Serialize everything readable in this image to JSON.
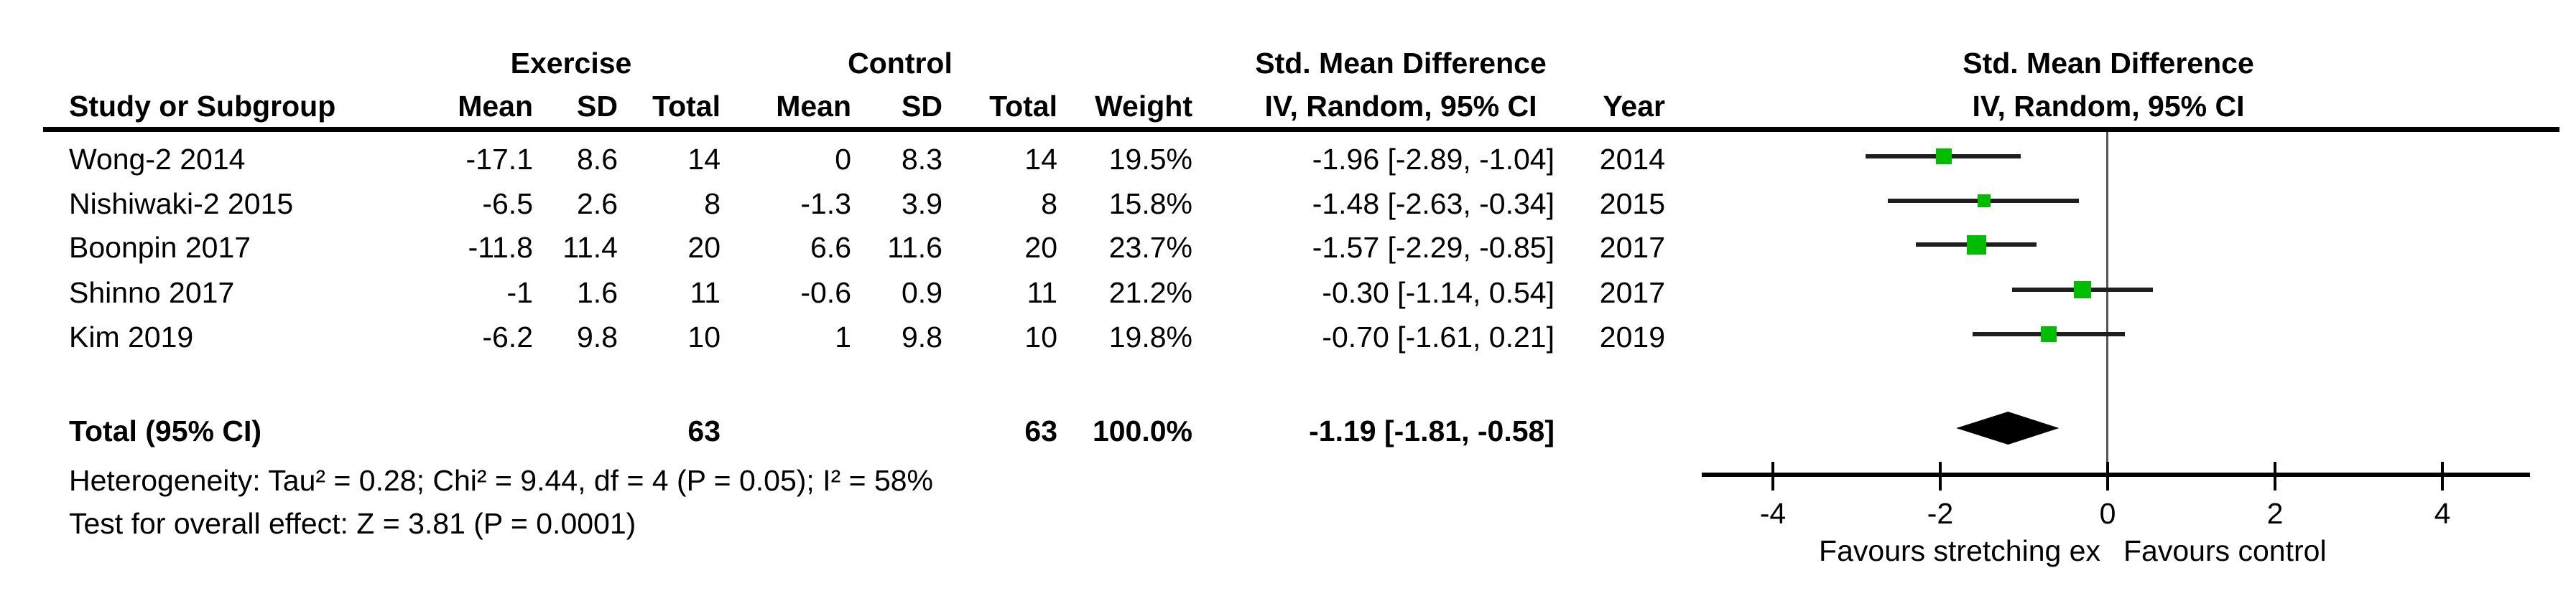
{
  "colors": {
    "marker_green": "#00BD00",
    "ci_line": "#1f1f1f",
    "zero_line": "#555555",
    "axis": "#000000",
    "text": "#000000"
  },
  "header": {
    "group_exercise": "Exercise",
    "group_control": "Control",
    "smd_left": "Std. Mean Difference",
    "smd_right": "Std. Mean Difference",
    "col_study": "Study or Subgroup",
    "col_mean_e": "Mean",
    "col_sd_e": "SD",
    "col_total_e": "Total",
    "col_mean_c": "Mean",
    "col_sd_c": "SD",
    "col_total_c": "Total",
    "col_weight": "Weight",
    "col_iv_left": "IV, Random, 95% CI",
    "col_year": "Year",
    "col_iv_right": "IV, Random, 95% CI"
  },
  "studies": [
    {
      "name": "Wong-2 2014",
      "mean_e": "-17.1",
      "sd_e": "8.6",
      "total_e": "14",
      "mean_c": "0",
      "sd_c": "8.3",
      "total_c": "14",
      "weight": "19.5%",
      "ci_text": "-1.96 [-2.89, -1.04]",
      "year": "2014"
    },
    {
      "name": "Nishiwaki-2 2015",
      "mean_e": "-6.5",
      "sd_e": "2.6",
      "total_e": "8",
      "mean_c": "-1.3",
      "sd_c": "3.9",
      "total_c": "8",
      "weight": "15.8%",
      "ci_text": "-1.48 [-2.63, -0.34]",
      "year": "2015"
    },
    {
      "name": "Boonpin 2017",
      "mean_e": "-11.8",
      "sd_e": "11.4",
      "total_e": "20",
      "mean_c": "6.6",
      "sd_c": "11.6",
      "total_c": "20",
      "weight": "23.7%",
      "ci_text": "-1.57 [-2.29, -0.85]",
      "year": "2017"
    },
    {
      "name": "Shinno 2017",
      "mean_e": "-1",
      "sd_e": "1.6",
      "total_e": "11",
      "mean_c": "-0.6",
      "sd_c": "0.9",
      "total_c": "11",
      "weight": "21.2%",
      "ci_text": "-0.30 [-1.14, 0.54]",
      "year": "2017"
    },
    {
      "name": "Kim 2019",
      "mean_e": "-6.2",
      "sd_e": "9.8",
      "total_e": "10",
      "mean_c": "1",
      "sd_c": "9.8",
      "total_c": "10",
      "weight": "19.8%",
      "ci_text": "-0.70 [-1.61, 0.21]",
      "year": "2019"
    }
  ],
  "total": {
    "label": "Total (95% CI)",
    "total_e": "63",
    "total_c": "63",
    "weight": "100.0%",
    "ci_text": "-1.19 [-1.81, -0.58]"
  },
  "footnotes": {
    "heterogeneity": "Heterogeneity: Tau² = 0.28; Chi² = 9.44, df = 4 (P = 0.05); I² = 58%",
    "overall_effect": "Test for overall effect: Z = 3.81 (P = 0.0001)"
  },
  "chart_data": {
    "type": "scatter",
    "subtype": "forest-plot",
    "title": "Std. Mean Difference",
    "effect_model": "IV, Random, 95% CI",
    "x_ticks": [
      -4,
      -2,
      0,
      2,
      4
    ],
    "xlim": [
      -4.85,
      5.05
    ],
    "zero_line": 0,
    "xlabel_left": "Favours stretching ex",
    "xlabel_right": "Favours control",
    "points": [
      {
        "study": "Wong-2 2014",
        "smd": -1.96,
        "ci_low": -2.89,
        "ci_high": -1.04,
        "weight_pct": 19.5,
        "year": 2014
      },
      {
        "study": "Nishiwaki-2 2015",
        "smd": -1.48,
        "ci_low": -2.63,
        "ci_high": -0.34,
        "weight_pct": 15.8,
        "year": 2015
      },
      {
        "study": "Boonpin 2017",
        "smd": -1.57,
        "ci_low": -2.29,
        "ci_high": -0.85,
        "weight_pct": 23.7,
        "year": 2017
      },
      {
        "study": "Shinno 2017",
        "smd": -0.3,
        "ci_low": -1.14,
        "ci_high": 0.54,
        "weight_pct": 21.2,
        "year": 2017
      },
      {
        "study": "Kim 2019",
        "smd": -0.7,
        "ci_low": -1.61,
        "ci_high": 0.21,
        "weight_pct": 19.8,
        "year": 2019
      }
    ],
    "diamond": {
      "smd": -1.19,
      "ci_low": -1.81,
      "ci_high": -0.58
    },
    "heterogeneity": {
      "tau2": 0.28,
      "chi2": 9.44,
      "df": 4,
      "p": 0.05,
      "i2_pct": 58
    },
    "overall_effect": {
      "z": 3.81,
      "p": 0.0001
    }
  }
}
